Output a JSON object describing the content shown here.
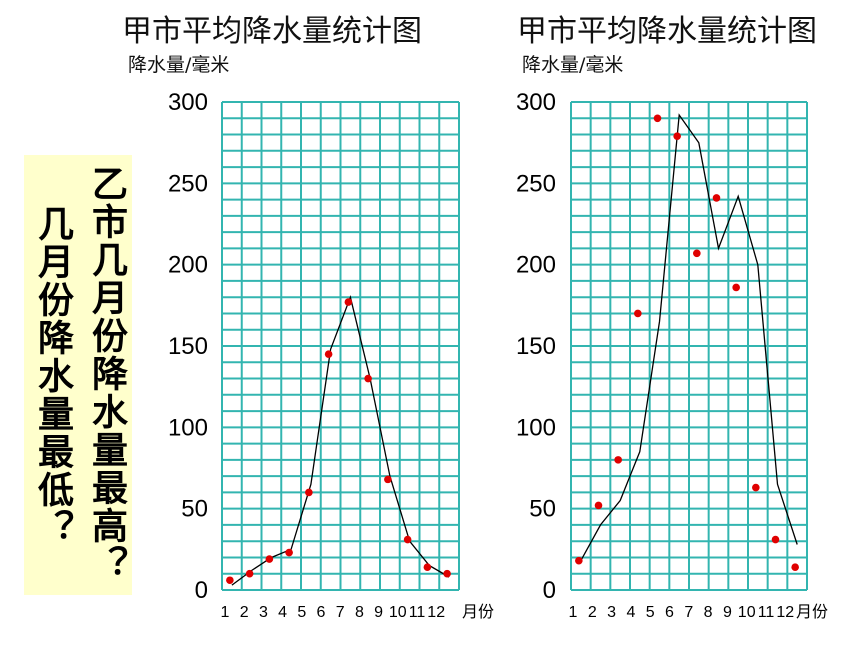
{
  "question": {
    "q1": "乙市几月份降水量最高？",
    "q2": "几月份降水量最低？"
  },
  "chart_data": [
    {
      "type": "line",
      "title": "甲市平均降水量统计图",
      "ylabel": "降水量/毫米",
      "xlabel": "月份",
      "categories": [
        "1",
        "2",
        "3",
        "4",
        "5",
        "6",
        "7",
        "8",
        "9",
        "10",
        "11",
        "12"
      ],
      "ylim": [
        0,
        300
      ],
      "yticks": [
        0,
        50,
        100,
        150,
        200,
        250,
        300
      ],
      "line_values": [
        3,
        12,
        20,
        25,
        65,
        148,
        180,
        130,
        70,
        30,
        15,
        8
      ],
      "dot_values": [
        6,
        10,
        19,
        23,
        60,
        145,
        177,
        130,
        68,
        31,
        14,
        10
      ],
      "colors": {
        "grid": "#33b5b0",
        "line": "#000000",
        "dot": "#e00000"
      }
    },
    {
      "type": "line",
      "title": "甲市平均降水量统计图",
      "ylabel": "降水量/毫米",
      "xlabel": "月份",
      "categories": [
        "1",
        "2",
        "3",
        "4",
        "5",
        "6",
        "7",
        "8",
        "9",
        "10",
        "11",
        "12"
      ],
      "ylim": [
        0,
        300
      ],
      "yticks": [
        0,
        50,
        100,
        150,
        200,
        250,
        300
      ],
      "line_values": [
        18,
        40,
        55,
        85,
        165,
        292,
        275,
        210,
        242,
        200,
        65,
        28
      ],
      "dot_values": [
        18,
        52,
        80,
        170,
        290,
        279,
        207,
        241,
        186,
        63,
        31,
        14
      ],
      "colors": {
        "grid": "#33b5b0",
        "line": "#000000",
        "dot": "#e00000"
      }
    }
  ]
}
